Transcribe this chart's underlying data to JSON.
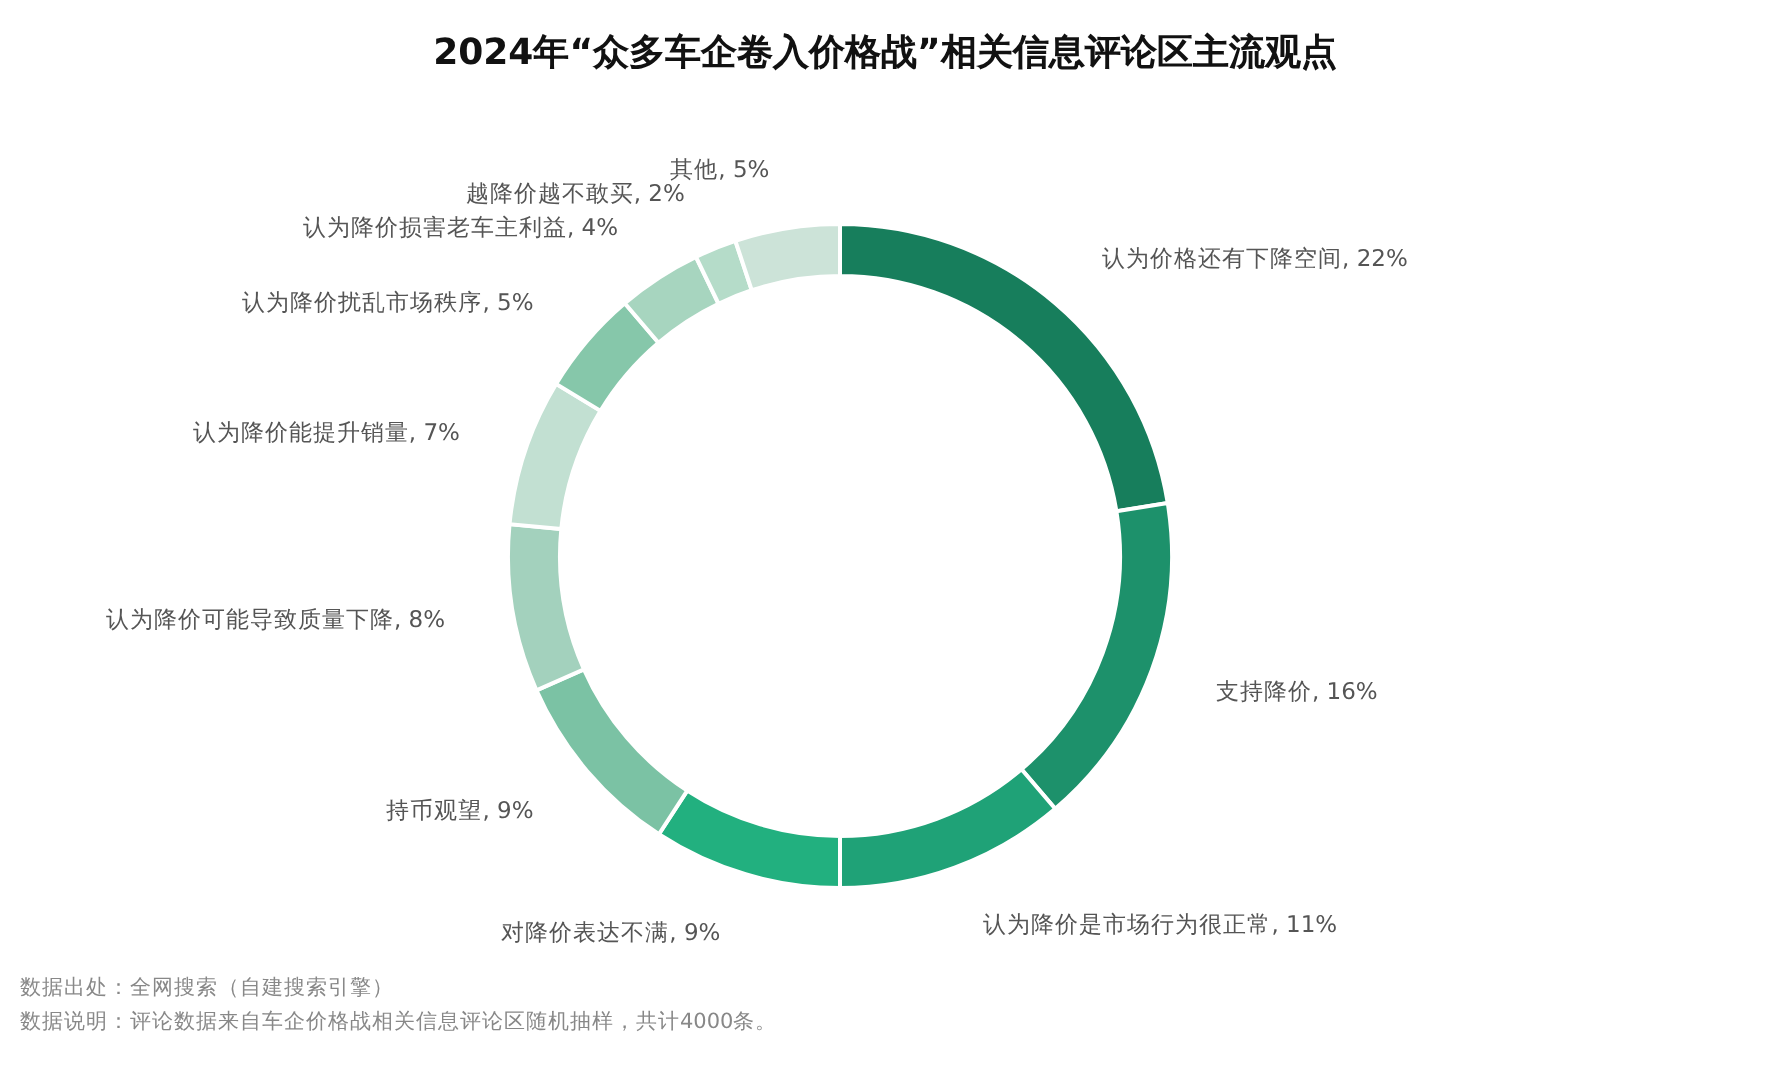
{
  "chart_data": {
    "type": "donut",
    "title": "2024年“众多车企卷入价格战”相关信息评论区主流观点",
    "categories": [
      "认为价格还有下降空间",
      "支持降价",
      "认为降价是市场行为很正常",
      "对降价表达不满",
      "持币观望",
      "认为降价可能导致质量下降",
      "认为降价能提升销量",
      "认为降价扰乱市场秩序",
      "认为降价损害老车主利益",
      "越降价越不敢买",
      "其他"
    ],
    "values": [
      22,
      16,
      11,
      9,
      9,
      8,
      7,
      5,
      4,
      2,
      5
    ],
    "value_labels": [
      "22%",
      "16%",
      "11%",
      "9%",
      "9%",
      "8%",
      "7%",
      "5%",
      "4%",
      "2%",
      "5%"
    ],
    "colors": [
      "#177e5c",
      "#1d916b",
      "#1fa277",
      "#22b07f",
      "#7bc2a4",
      "#a3d1bd",
      "#c2e0d2",
      "#86c7aa",
      "#a7d5bf",
      "#b5dcc9",
      "#cce3d8"
    ],
    "annotations": [
      "数据出处：全网搜索（自建搜索引擎）",
      "数据说明：评论数据来自车企价格战相关信息评论区随机抽样，共计4000条。"
    ]
  }
}
